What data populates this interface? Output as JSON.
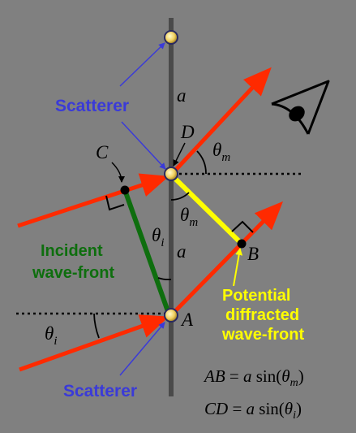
{
  "labels": {
    "scatterer_top": "Scatterer",
    "scatterer_bottom": "Scatterer",
    "incident_line1": "Incident",
    "incident_line2": "wave-front",
    "potential_line1": "Potential",
    "potential_line2": "diffracted",
    "potential_line3": "wave-front"
  },
  "points": {
    "a_top": "a",
    "a_mid": "a",
    "C": "C",
    "D": "D",
    "B": "B",
    "A": "A"
  },
  "angles": {
    "theta": "θ",
    "m": "m",
    "i": "i"
  },
  "equations": {
    "eq1": {
      "lhs": "AB",
      "eq": " = ",
      "a": "a",
      "fn": " sin(",
      "theta": "θ",
      "sub": "m",
      "close": ")"
    },
    "eq2": {
      "lhs": "CD",
      "eq": " = ",
      "a": "a",
      "fn": " sin(",
      "theta": "θ",
      "sub": "i",
      "close": ")"
    }
  },
  "colors": {
    "background": "#808080",
    "rays": "#ff2a00",
    "incident_wavefront": "#0e6e0e",
    "diffracted_wavefront": "#ffff00",
    "scatterer_label": "#3a3ad8",
    "line_of_scatterers": "#4a4a4a"
  },
  "icons": [
    "scatterer-dot-icon",
    "eye-icon",
    "right-angle-marker-icon",
    "arrowhead-icon"
  ]
}
